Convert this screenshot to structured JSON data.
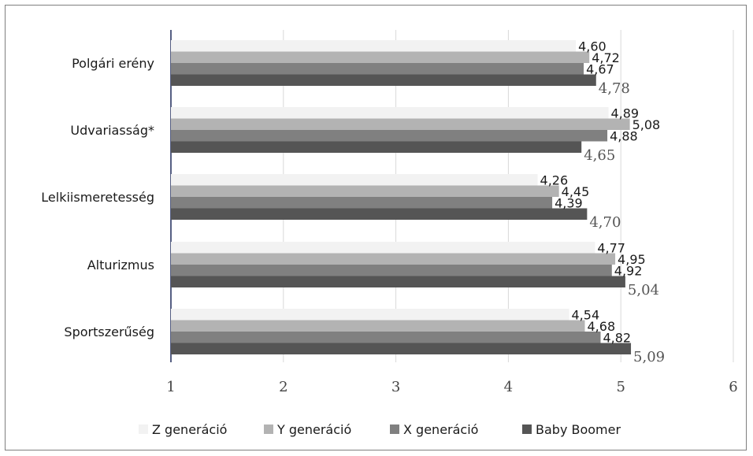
{
  "chart_data": {
    "type": "bar",
    "orientation": "horizontal",
    "categories": [
      "Polgári erény",
      "Udvariasság*",
      "Lelkiismeretesség",
      "Alturizmus",
      "Sportszerűség"
    ],
    "series": [
      {
        "name": "Z generáció",
        "color": "#f2f2f2",
        "values": [
          4.6,
          4.89,
          4.26,
          4.77,
          4.54
        ],
        "labels": [
          "4,60",
          "4,89",
          "4,26",
          "4,77",
          "4,54"
        ]
      },
      {
        "name": "Y generáció",
        "color": "#b3b3b3",
        "values": [
          4.72,
          5.08,
          4.45,
          4.95,
          4.68
        ],
        "labels": [
          "4,72",
          "5,08",
          "4,45",
          "4,95",
          "4,68"
        ]
      },
      {
        "name": "X generáció",
        "color": "#808080",
        "values": [
          4.67,
          4.88,
          4.39,
          4.92,
          4.82
        ],
        "labels": [
          "4,67",
          "4,88",
          "4,39",
          "4,92",
          "4,82"
        ]
      },
      {
        "name": "Baby Boomer",
        "color": "#555555",
        "values": [
          4.78,
          4.65,
          4.7,
          5.04,
          5.09
        ],
        "labels": [
          "4,78",
          "4,65",
          "4,70",
          "5,04",
          "5,09"
        ]
      }
    ],
    "xlim": [
      1,
      6
    ],
    "xticks": [
      "1",
      "2",
      "3",
      "4",
      "5",
      "6"
    ],
    "grid": true,
    "legend_position": "bottom"
  }
}
